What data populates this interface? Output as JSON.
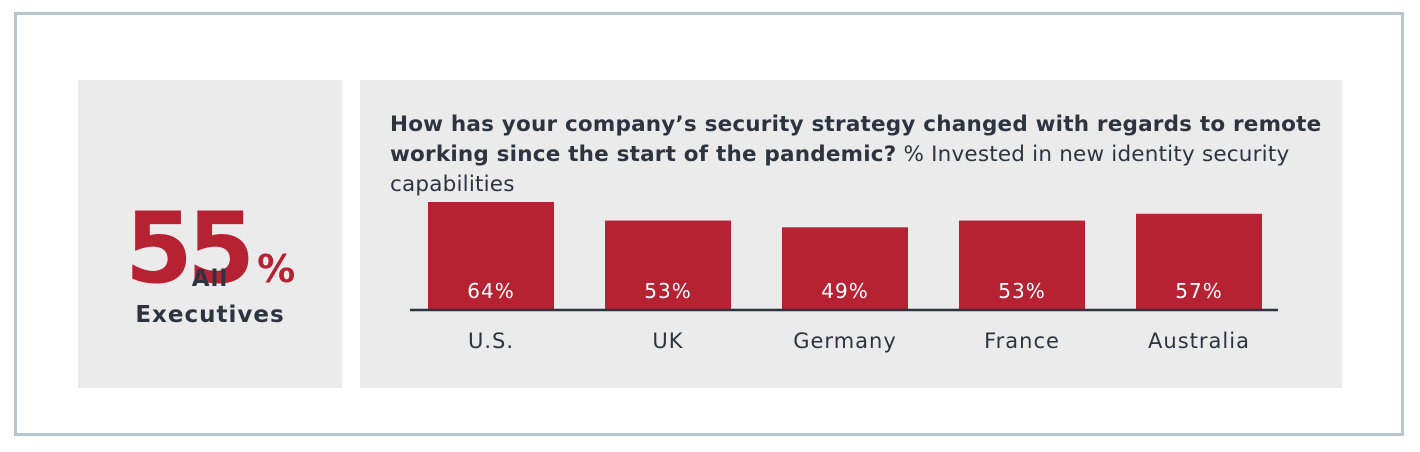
{
  "summary": {
    "value": "55",
    "suffix": "%",
    "label_line1": "All",
    "label_line2": "Executives"
  },
  "question": {
    "bold": "How has your company’s security strategy changed with regards to remote working since the start of the pandemic?",
    "normal": "% Invested in new identity security capabilities"
  },
  "colors": {
    "accent": "#b72233",
    "text": "#2d3440",
    "panel": "#ebebeb",
    "frame": "#b7c5cc"
  },
  "chart_data": {
    "type": "bar",
    "categories": [
      "U.S.",
      "UK",
      "Germany",
      "France",
      "Australia"
    ],
    "values": [
      64,
      53,
      49,
      53,
      57
    ],
    "value_labels": [
      "64%",
      "53%",
      "49%",
      "53%",
      "57%"
    ],
    "title": "",
    "xlabel": "",
    "ylabel": "",
    "grid": false
  }
}
